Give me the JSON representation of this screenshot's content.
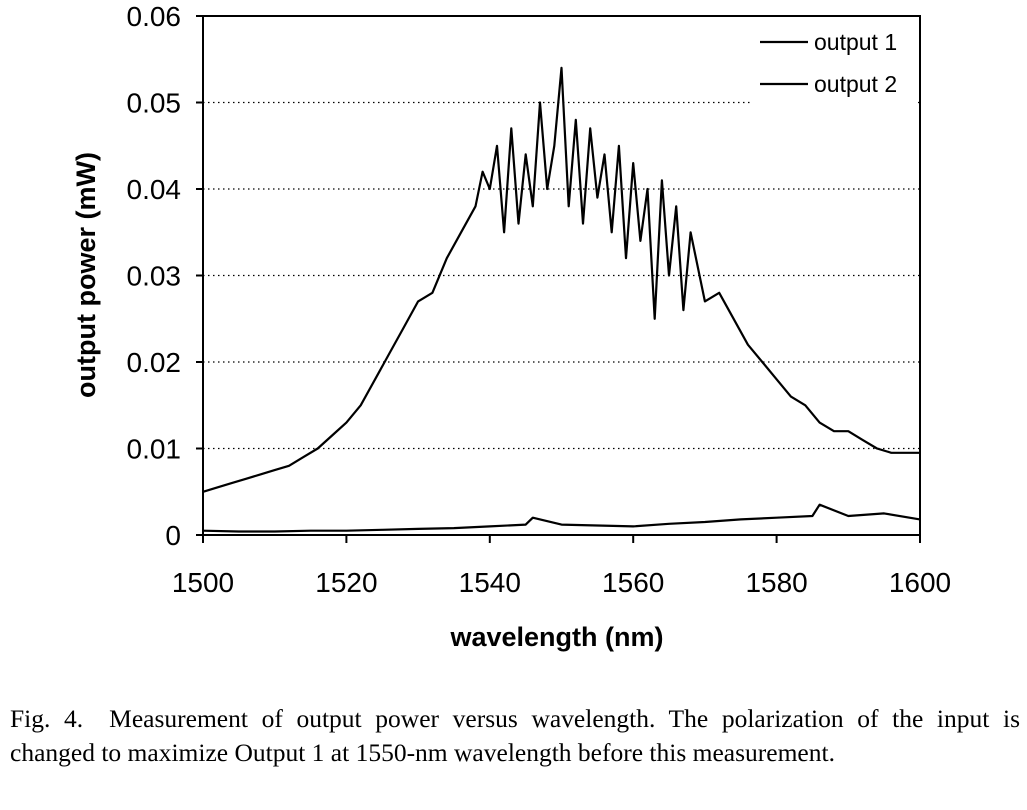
{
  "caption": {
    "label": "Fig. 4.",
    "text": "Measurement of output power versus wavelength. The polarization of the input is changed to maximize Output 1 at 1550-nm wavelength before this measurement."
  },
  "chart_data": {
    "type": "line",
    "xlabel": "wavelength (nm)",
    "ylabel": "output power (mW)",
    "xlim": [
      1500,
      1600
    ],
    "ylim": [
      0,
      0.06
    ],
    "xticks": [
      "1500",
      "1520",
      "1540",
      "1560",
      "1580",
      "1600"
    ],
    "yticks": [
      "0",
      "0.01",
      "0.02",
      "0.03",
      "0.04",
      "0.05",
      "0.06"
    ],
    "grid": "horizontal dotted",
    "legend_position": "top-right",
    "series": [
      {
        "name": "output 1",
        "color": "#000000",
        "x": [
          1500,
          1502,
          1504,
          1506,
          1508,
          1510,
          1512,
          1514,
          1516,
          1518,
          1520,
          1522,
          1524,
          1526,
          1528,
          1530,
          1532,
          1534,
          1536,
          1538,
          1539,
          1540,
          1541,
          1542,
          1543,
          1544,
          1545,
          1546,
          1547,
          1548,
          1549,
          1550,
          1551,
          1552,
          1553,
          1554,
          1555,
          1556,
          1557,
          1558,
          1559,
          1560,
          1561,
          1562,
          1563,
          1564,
          1565,
          1566,
          1567,
          1568,
          1570,
          1572,
          1574,
          1576,
          1578,
          1580,
          1582,
          1584,
          1586,
          1588,
          1590,
          1592,
          1594,
          1596,
          1598,
          1600
        ],
        "y": [
          0.005,
          0.0055,
          0.006,
          0.0065,
          0.007,
          0.0075,
          0.008,
          0.009,
          0.01,
          0.0115,
          0.013,
          0.015,
          0.018,
          0.021,
          0.024,
          0.027,
          0.028,
          0.032,
          0.035,
          0.038,
          0.042,
          0.04,
          0.045,
          0.035,
          0.047,
          0.036,
          0.044,
          0.038,
          0.05,
          0.04,
          0.045,
          0.054,
          0.038,
          0.048,
          0.036,
          0.047,
          0.039,
          0.044,
          0.035,
          0.045,
          0.032,
          0.043,
          0.034,
          0.04,
          0.025,
          0.041,
          0.03,
          0.038,
          0.026,
          0.035,
          0.027,
          0.028,
          0.025,
          0.022,
          0.02,
          0.018,
          0.016,
          0.015,
          0.013,
          0.012,
          0.012,
          0.011,
          0.01,
          0.0095,
          0.0095,
          0.0095
        ]
      },
      {
        "name": "output 2",
        "color": "#000000",
        "x": [
          1500,
          1505,
          1510,
          1515,
          1520,
          1525,
          1530,
          1535,
          1540,
          1545,
          1546,
          1550,
          1555,
          1560,
          1565,
          1570,
          1575,
          1580,
          1585,
          1586,
          1590,
          1595,
          1600
        ],
        "y": [
          0.0005,
          0.0004,
          0.0004,
          0.0005,
          0.0005,
          0.0006,
          0.0007,
          0.0008,
          0.001,
          0.0012,
          0.002,
          0.0012,
          0.0011,
          0.001,
          0.0013,
          0.0015,
          0.0018,
          0.002,
          0.0022,
          0.0035,
          0.0022,
          0.0025,
          0.0018
        ]
      }
    ]
  }
}
